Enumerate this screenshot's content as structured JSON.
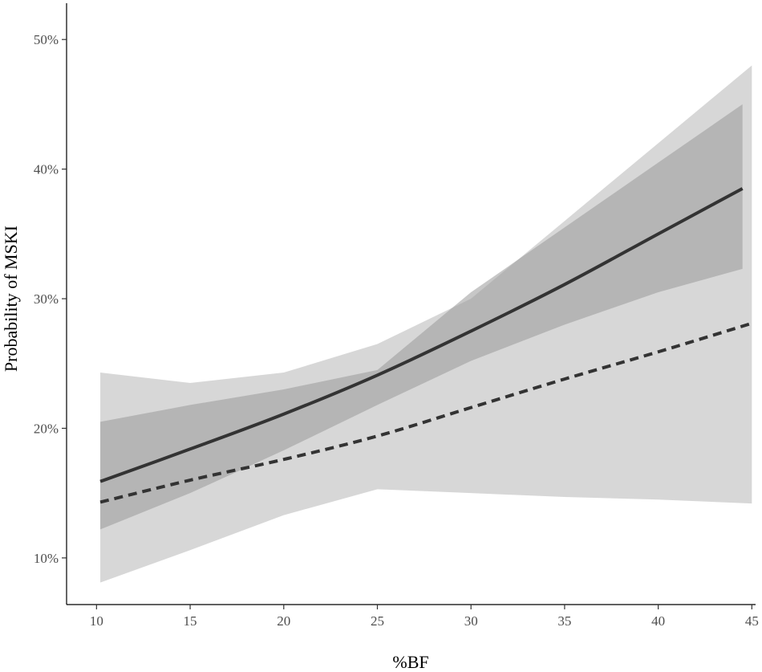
{
  "chart_data": {
    "type": "line",
    "title": "",
    "xlabel": "%BF",
    "ylabel": "Probability of MSKI",
    "xlim": [
      8.4,
      45.2
    ],
    "ylim": [
      0.064,
      0.528
    ],
    "x_ticks": [
      10,
      15,
      20,
      25,
      30,
      35,
      40,
      45
    ],
    "x_tick_labels": [
      "10",
      "15",
      "20",
      "25",
      "30",
      "35",
      "40",
      "45"
    ],
    "y_ticks": [
      0.1,
      0.2,
      0.3,
      0.4,
      0.5
    ],
    "y_tick_labels": [
      "10%",
      "20%",
      "30%",
      "40%",
      "50%"
    ],
    "grid": false,
    "legend": "none",
    "series": [
      {
        "line_style": "solid",
        "color": "#333333",
        "x": [
          10.2,
          15,
          20,
          25,
          30,
          35,
          40,
          44.5
        ],
        "y": [
          0.159,
          0.184,
          0.211,
          0.241,
          0.275,
          0.311,
          0.35,
          0.385
        ],
        "ci_lower": [
          0.122,
          0.15,
          0.183,
          0.218,
          0.252,
          0.28,
          0.305,
          0.323
        ],
        "ci_upper": [
          0.205,
          0.218,
          0.23,
          0.245,
          0.305,
          0.355,
          0.405,
          0.45
        ],
        "ci_color": "#999999",
        "ci_opacity": 0.55
      },
      {
        "line_style": "dashed",
        "color": "#333333",
        "x": [
          10.2,
          15,
          20,
          25,
          30,
          35,
          40,
          45
        ],
        "y": [
          0.143,
          0.16,
          0.176,
          0.194,
          0.216,
          0.238,
          0.259,
          0.281
        ],
        "ci_lower": [
          0.081,
          0.106,
          0.133,
          0.153,
          0.15,
          0.147,
          0.145,
          0.142
        ],
        "ci_upper": [
          0.243,
          0.235,
          0.243,
          0.265,
          0.3,
          0.36,
          0.42,
          0.48
        ],
        "ci_color": "#c2c2c2",
        "ci_opacity": 0.65
      }
    ]
  }
}
